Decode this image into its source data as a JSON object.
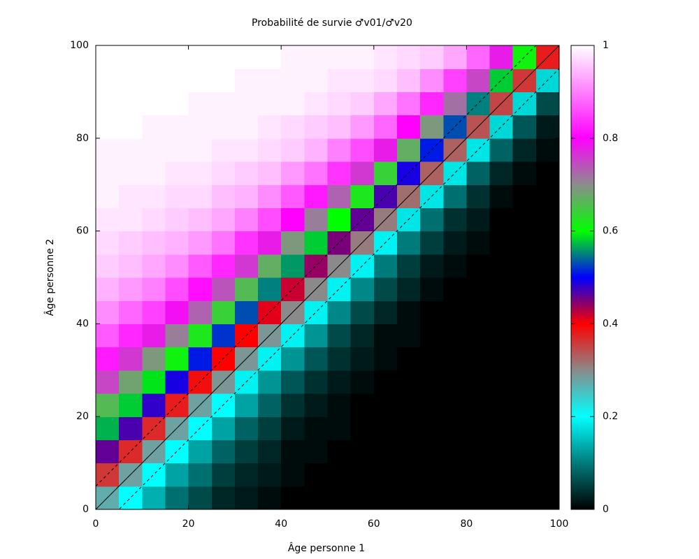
{
  "chart_data": {
    "type": "heatmap",
    "title": "Probabilité de survie ♂v01/♂v20",
    "xlabel": "Âge personne 1",
    "ylabel": "Âge personne 2",
    "xlim": [
      0,
      100
    ],
    "ylim": [
      0,
      100
    ],
    "xticks": [
      0,
      20,
      40,
      60,
      80,
      100
    ],
    "yticks": [
      0,
      20,
      40,
      60,
      80,
      100
    ],
    "xbins": [
      0,
      5,
      10,
      15,
      20,
      25,
      30,
      35,
      40,
      45,
      50,
      55,
      60,
      65,
      70,
      75,
      80,
      85,
      90,
      95,
      100
    ],
    "ybins": [
      0,
      5,
      10,
      15,
      20,
      25,
      30,
      35,
      40,
      45,
      50,
      55,
      60,
      65,
      70,
      75,
      80,
      85,
      90,
      95,
      100
    ],
    "values": [
      [
        0.27,
        0.36,
        0.46,
        0.57,
        0.66,
        0.75,
        0.82,
        0.87,
        0.91,
        0.94,
        0.96,
        0.97,
        0.98,
        0.99,
        0.99,
        0.99,
        1,
        1,
        1,
        1
      ],
      [
        0.2,
        0.28,
        0.37,
        0.47,
        0.58,
        0.68,
        0.76,
        0.83,
        0.88,
        0.92,
        0.95,
        0.96,
        0.98,
        0.98,
        0.99,
        0.99,
        1,
        1,
        1,
        1
      ],
      [
        0.14,
        0.2,
        0.28,
        0.37,
        0.48,
        0.59,
        0.69,
        0.78,
        0.85,
        0.9,
        0.93,
        0.95,
        0.97,
        0.98,
        0.99,
        0.99,
        0.99,
        1,
        1,
        1
      ],
      [
        0.09,
        0.13,
        0.2,
        0.28,
        0.38,
        0.49,
        0.61,
        0.71,
        0.79,
        0.86,
        0.91,
        0.94,
        0.96,
        0.97,
        0.98,
        0.99,
        0.99,
        1,
        1,
        1
      ],
      [
        0.06,
        0.09,
        0.13,
        0.2,
        0.28,
        0.39,
        0.51,
        0.62,
        0.73,
        0.81,
        0.87,
        0.92,
        0.95,
        0.97,
        0.98,
        0.99,
        0.99,
        0.99,
        1,
        1
      ],
      [
        0.03,
        0.05,
        0.08,
        0.13,
        0.2,
        0.29,
        0.4,
        0.52,
        0.64,
        0.74,
        0.83,
        0.89,
        0.93,
        0.95,
        0.97,
        0.98,
        0.99,
        0.99,
        1,
        1
      ],
      [
        0.02,
        0.03,
        0.05,
        0.08,
        0.13,
        0.19,
        0.29,
        0.4,
        0.53,
        0.66,
        0.76,
        0.84,
        0.9,
        0.94,
        0.96,
        0.98,
        0.99,
        0.99,
        0.99,
        1
      ],
      [
        0.01,
        0.02,
        0.03,
        0.05,
        0.08,
        0.12,
        0.19,
        0.29,
        0.41,
        0.55,
        0.67,
        0.78,
        0.86,
        0.91,
        0.95,
        0.97,
        0.98,
        0.99,
        0.99,
        1
      ],
      [
        0,
        0.01,
        0.01,
        0.02,
        0.04,
        0.07,
        0.12,
        0.19,
        0.3,
        0.42,
        0.56,
        0.69,
        0.8,
        0.87,
        0.92,
        0.96,
        0.97,
        0.99,
        0.99,
        0.99
      ],
      [
        0,
        0,
        0.01,
        0.01,
        0.02,
        0.04,
        0.07,
        0.12,
        0.19,
        0.3,
        0.44,
        0.58,
        0.71,
        0.82,
        0.89,
        0.94,
        0.96,
        0.98,
        0.99,
        0.99
      ],
      [
        0,
        0,
        0,
        0.01,
        0.01,
        0.02,
        0.04,
        0.06,
        0.11,
        0.19,
        0.3,
        0.45,
        0.6,
        0.73,
        0.84,
        0.9,
        0.95,
        0.97,
        0.98,
        0.99
      ],
      [
        0,
        0,
        0,
        0,
        0,
        0.01,
        0.02,
        0.03,
        0.06,
        0.11,
        0.19,
        0.31,
        0.46,
        0.62,
        0.76,
        0.86,
        0.92,
        0.96,
        0.98,
        0.99
      ],
      [
        0,
        0,
        0,
        0,
        0,
        0,
        0.01,
        0.01,
        0.03,
        0.06,
        0.1,
        0.19,
        0.31,
        0.47,
        0.64,
        0.78,
        0.88,
        0.93,
        0.97,
        0.98
      ],
      [
        0,
        0,
        0,
        0,
        0,
        0,
        0,
        0.01,
        0.01,
        0.03,
        0.05,
        0.1,
        0.18,
        0.32,
        0.49,
        0.67,
        0.8,
        0.89,
        0.95,
        0.97
      ],
      [
        0,
        0,
        0,
        0,
        0,
        0,
        0,
        0,
        0,
        0.01,
        0.02,
        0.05,
        0.09,
        0.18,
        0.33,
        0.51,
        0.69,
        0.83,
        0.91,
        0.96
      ],
      [
        0,
        0,
        0,
        0,
        0,
        0,
        0,
        0,
        0,
        0,
        0.01,
        0.02,
        0.04,
        0.09,
        0.18,
        0.33,
        0.53,
        0.72,
        0.85,
        0.93
      ],
      [
        0,
        0,
        0,
        0,
        0,
        0,
        0,
        0,
        0,
        0,
        0,
        0.01,
        0.02,
        0.04,
        0.08,
        0.18,
        0.34,
        0.55,
        0.75,
        0.88
      ],
      [
        0,
        0,
        0,
        0,
        0,
        0,
        0,
        0,
        0,
        0,
        0,
        0,
        0,
        0.01,
        0.03,
        0.08,
        0.17,
        0.35,
        0.58,
        0.78
      ],
      [
        0,
        0,
        0,
        0,
        0,
        0,
        0,
        0,
        0,
        0,
        0,
        0,
        0,
        0,
        0.01,
        0.03,
        0.07,
        0.17,
        0.36,
        0.61
      ],
      [
        0,
        0,
        0,
        0,
        0,
        0,
        0,
        0,
        0,
        0,
        0,
        0,
        0,
        0,
        0,
        0.01,
        0.02,
        0.06,
        0.17,
        0.38
      ]
    ],
    "zlim": [
      0,
      1
    ],
    "zticks": [
      0,
      0.2,
      0.4,
      0.6,
      0.8,
      1
    ],
    "colormap": [
      {
        "value": 0,
        "color": "#000000"
      },
      {
        "value": 0.1,
        "color": "#007b7b"
      },
      {
        "value": 0.2,
        "color": "#00ffff"
      },
      {
        "value": 0.3,
        "color": "#8a8a8a"
      },
      {
        "value": 0.4,
        "color": "#ff0000"
      },
      {
        "value": 0.45,
        "color": "#7a007a"
      },
      {
        "value": 0.5,
        "color": "#0000ff"
      },
      {
        "value": 0.6,
        "color": "#00ff00"
      },
      {
        "value": 0.7,
        "color": "#8c8c8c"
      },
      {
        "value": 0.8,
        "color": "#ff00ff"
      },
      {
        "value": 1,
        "color": "#ffffff"
      }
    ],
    "reference_lines": [
      {
        "offset": 0,
        "style": "solid"
      },
      {
        "offset": 5,
        "style": "dashed"
      },
      {
        "offset": -5,
        "style": "dashed"
      }
    ]
  }
}
